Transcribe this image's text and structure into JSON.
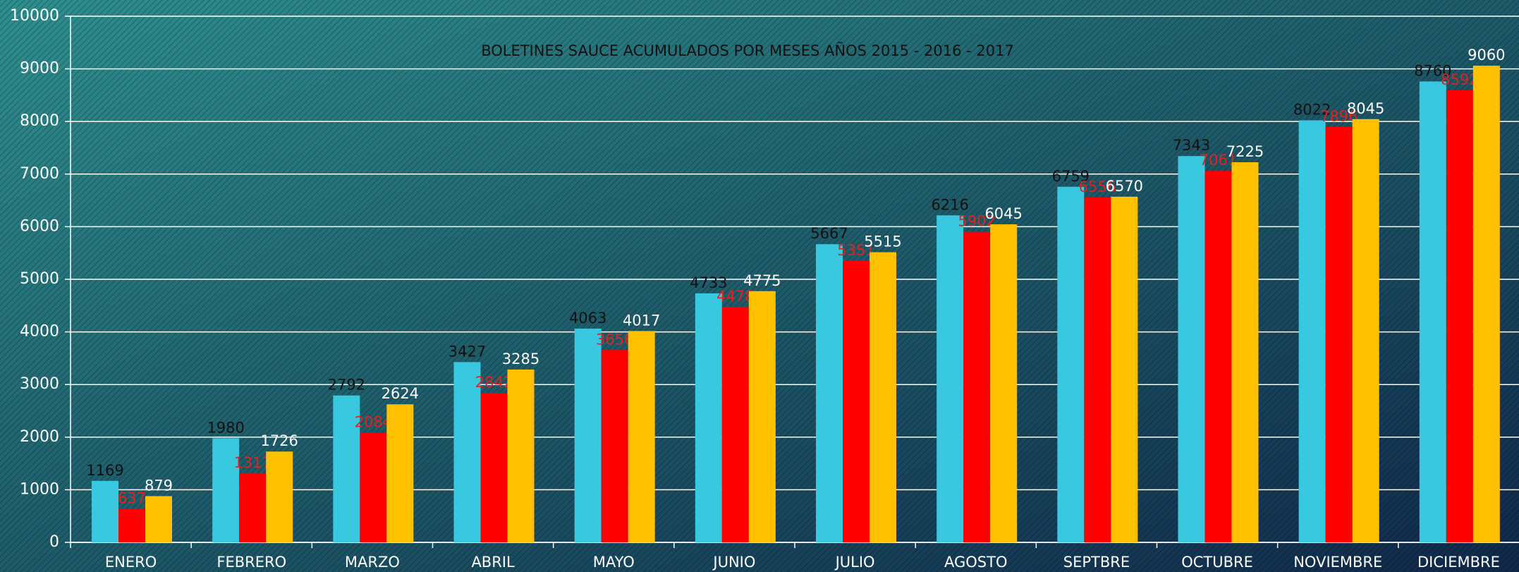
{
  "chart_data": {
    "type": "bar",
    "title": "BOLETINES SAUCE ACUMULADOS POR MESES AÑOS 2015 - 2016 - 2017",
    "categories": [
      "ENERO",
      "FEBRERO",
      "MARZO",
      "ABRIL",
      "MAYO",
      "JUNIO",
      "JULIO",
      "AGOSTO",
      "SEPTBRE",
      "OCTUBRE",
      "NOVIEMBRE",
      "DICIEMBRE"
    ],
    "series": [
      {
        "color": "#38c8e0",
        "label_color": "#111111",
        "values": [
          1169,
          1980,
          2792,
          3427,
          4063,
          4733,
          5667,
          6216,
          6759,
          7343,
          8022,
          8760
        ]
      },
      {
        "color": "#ff0000",
        "label_color": "#e8201c",
        "values": [
          637,
          1317,
          2084,
          2842,
          3656,
          4478,
          5351,
          5902,
          6556,
          7061,
          7896,
          8592
        ]
      },
      {
        "color": "#ffc000",
        "label_color": "#ffffff",
        "values": [
          879,
          1726,
          2624,
          3285,
          4017,
          4775,
          5515,
          6045,
          6570,
          7225,
          8045,
          9060
        ]
      }
    ],
    "ylim": [
      0,
      10000
    ],
    "yticks": [
      0,
      1000,
      2000,
      3000,
      4000,
      5000,
      6000,
      7000,
      8000,
      9000,
      10000
    ],
    "grid": true
  }
}
